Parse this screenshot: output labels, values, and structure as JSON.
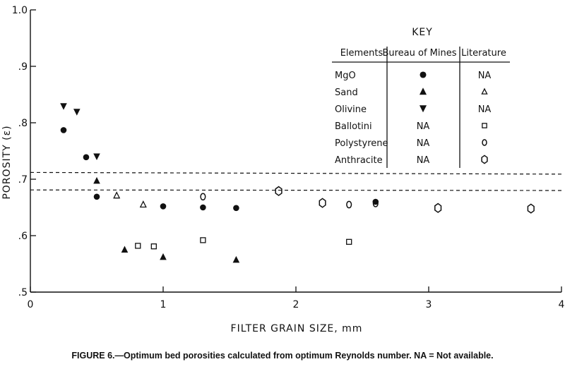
{
  "chart_data": {
    "type": "scatter",
    "xlabel": "FILTER GRAIN SIZE, mm",
    "ylabel": "POROSITY (ε)",
    "xlim": [
      0,
      4
    ],
    "ylim": [
      0.5,
      1.0
    ],
    "x_ticks": [
      0,
      1,
      2,
      3,
      4
    ],
    "x_tick_labels": [
      "0",
      "1",
      "2",
      "3",
      "4"
    ],
    "y_ticks": [
      0.5,
      0.6,
      0.7,
      0.8,
      0.9,
      1.0
    ],
    "y_tick_labels": [
      ".5",
      ".6",
      ".7",
      ".8",
      ".9",
      "1.0"
    ],
    "grid": false,
    "reference_lines": [
      {
        "style": "dashed",
        "y_start": 0.712,
        "y_end": 0.709
      },
      {
        "style": "dashed",
        "y_start": 0.681,
        "y_end": 0.68
      }
    ],
    "series": [
      {
        "name": "MgO",
        "source": "Bureau of Mines",
        "marker": "filled-circle",
        "points": [
          {
            "x": 0.25,
            "y": 0.787
          },
          {
            "x": 0.42,
            "y": 0.739
          },
          {
            "x": 0.5,
            "y": 0.669
          },
          {
            "x": 1.0,
            "y": 0.652
          },
          {
            "x": 1.3,
            "y": 0.65
          },
          {
            "x": 1.55,
            "y": 0.649
          },
          {
            "x": 2.6,
            "y": 0.66
          }
        ]
      },
      {
        "name": "Sand",
        "source": "Bureau of Mines",
        "marker": "filled-triangle-up",
        "points": [
          {
            "x": 0.5,
            "y": 0.697
          },
          {
            "x": 0.71,
            "y": 0.575
          },
          {
            "x": 1.0,
            "y": 0.562
          },
          {
            "x": 1.55,
            "y": 0.557
          }
        ]
      },
      {
        "name": "Sand",
        "source": "Literature",
        "marker": "open-triangle-up",
        "points": [
          {
            "x": 0.65,
            "y": 0.671
          },
          {
            "x": 0.85,
            "y": 0.655
          }
        ]
      },
      {
        "name": "Olivine",
        "source": "Bureau of Mines",
        "marker": "filled-triangle-down",
        "points": [
          {
            "x": 0.25,
            "y": 0.829
          },
          {
            "x": 0.35,
            "y": 0.819
          },
          {
            "x": 0.5,
            "y": 0.74
          }
        ]
      },
      {
        "name": "Ballotini",
        "source": "Literature",
        "marker": "open-square",
        "points": [
          {
            "x": 0.81,
            "y": 0.582
          },
          {
            "x": 0.93,
            "y": 0.581
          },
          {
            "x": 1.3,
            "y": 0.592
          },
          {
            "x": 2.4,
            "y": 0.589
          }
        ]
      },
      {
        "name": "Polystyrene",
        "source": "Literature",
        "marker": "open-oval",
        "points": [
          {
            "x": 1.3,
            "y": 0.669
          },
          {
            "x": 2.4,
            "y": 0.655
          },
          {
            "x": 2.6,
            "y": 0.657
          }
        ]
      },
      {
        "name": "Anthracite",
        "source": "Literature",
        "marker": "open-hexagon",
        "points": [
          {
            "x": 1.87,
            "y": 0.679
          },
          {
            "x": 2.2,
            "y": 0.658
          },
          {
            "x": 3.07,
            "y": 0.649
          },
          {
            "x": 3.77,
            "y": 0.648
          }
        ]
      }
    ]
  },
  "key": {
    "title": "KEY",
    "headers": [
      "Elements",
      "Bureau of Mines",
      "Literature"
    ],
    "rows": [
      {
        "element": "MgO",
        "bureau": "",
        "bureau_marker": "filled-circle",
        "literature": "NA",
        "literature_marker": ""
      },
      {
        "element": "Sand",
        "bureau": "",
        "bureau_marker": "filled-triangle-up",
        "literature": "",
        "literature_marker": "open-triangle-up"
      },
      {
        "element": "Olivine",
        "bureau": "",
        "bureau_marker": "filled-triangle-down",
        "literature": "NA",
        "literature_marker": ""
      },
      {
        "element": "Ballotini",
        "bureau": "NA",
        "bureau_marker": "",
        "literature": "",
        "literature_marker": "open-square"
      },
      {
        "element": "Polystyrene",
        "bureau": "NA",
        "bureau_marker": "",
        "literature": "",
        "literature_marker": "open-oval"
      },
      {
        "element": "Anthracite",
        "bureau": "NA",
        "bureau_marker": "",
        "literature": "",
        "literature_marker": "open-hexagon"
      }
    ]
  },
  "caption": "FIGURE 6.—Optimum bed porosities calculated from optimum Reynolds number. NA = Not available."
}
